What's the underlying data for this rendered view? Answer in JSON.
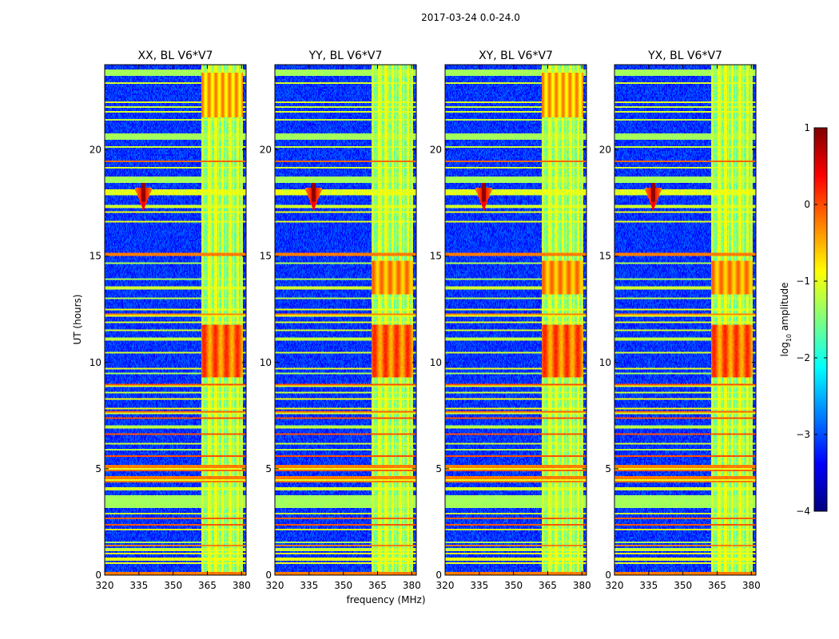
{
  "suptitle": "2017-03-24 0.0-24.0",
  "chart_data": {
    "type": "heatmap",
    "figure_title": "2017-03-24 0.0-24.0",
    "xlabel": "frequency (MHz)",
    "ylabel": "UT (hours)",
    "xlim": [
      320,
      382
    ],
    "ylim": [
      0,
      24
    ],
    "x_ticks": [
      320,
      335,
      350,
      365,
      380
    ],
    "y_ticks": [
      0,
      5,
      10,
      15,
      20
    ],
    "colorbar": {
      "label_prefix": "log",
      "label_subscript": "10",
      "label_suffix": " amplitude",
      "range": [
        -4,
        1
      ],
      "ticks": [
        1,
        0,
        -1,
        -2,
        -3,
        -4
      ],
      "tick_labels": [
        "1",
        "0",
        "−1",
        "−2",
        "−3",
        "−4"
      ],
      "colormap": "jet"
    },
    "panels": [
      {
        "title": "XX, BL V6*V7",
        "polarization": "XX",
        "rfi_band_mhz": [
          362.5,
          380.5
        ],
        "event_ut": 18.0
      },
      {
        "title": "YY, BL V6*V7",
        "polarization": "YY",
        "rfi_band_mhz": [
          362.5,
          380.5
        ],
        "event_ut": 18.0
      },
      {
        "title": "XY, BL V6*V7",
        "polarization": "XY",
        "rfi_band_mhz": [
          362.5,
          380.5
        ],
        "event_ut": 18.0
      },
      {
        "title": "YX, BL V6*V7",
        "polarization": "YX",
        "rfi_band_mhz": [
          362.5,
          380.5
        ],
        "event_ut": 18.0
      }
    ],
    "annotations": [
      "strong RFI band 362.5-380.5 MHz",
      "transient burst near 337 MHz at ~18 UT",
      "broadband flagged rows"
    ]
  }
}
